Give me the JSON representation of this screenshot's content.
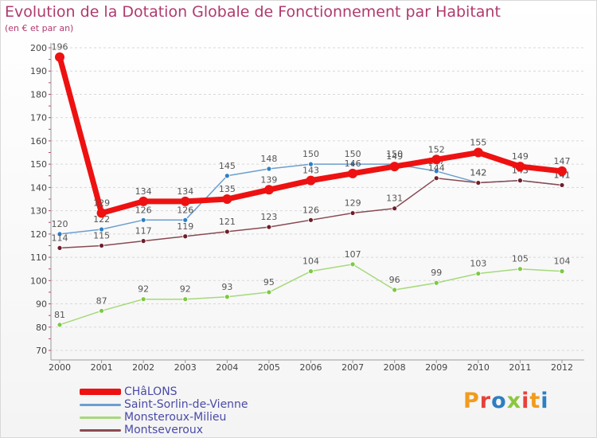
{
  "header": {
    "title": "Evolution de la Dotation Globale de Fonctionnement par Habitant",
    "subtitle": "(en € et par an)"
  },
  "brand": {
    "text": "Proxiti",
    "colors": [
      "#f29b1d",
      "#e6413a",
      "#2d7fc1",
      "#8cc63f",
      "#e6413a",
      "#f29b1d",
      "#2d7fc1"
    ]
  },
  "chart_data": {
    "type": "line",
    "title": "Evolution de la Dotation Globale de Fonctionnement par Habitant",
    "subtitle": "(en € et par an)",
    "xlabel": "",
    "ylabel": "",
    "x": [
      "2000",
      "2001",
      "2002",
      "2003",
      "2004",
      "2005",
      "2006",
      "2007",
      "2008",
      "2009",
      "2010",
      "2011",
      "2012"
    ],
    "ylim": [
      70,
      200
    ],
    "yticks": [
      70,
      80,
      90,
      100,
      110,
      120,
      130,
      140,
      150,
      160,
      170,
      180,
      190,
      200
    ],
    "grid": "horizontal dashed",
    "legend_position": "bottom-left",
    "series": [
      {
        "name": "Saint-Sorlin-de-Vienne",
        "color": "#6b9fd0",
        "marker": "#2f7fc4",
        "width": 1.5,
        "values": [
          120,
          122,
          126,
          126,
          145,
          148,
          150,
          150,
          150,
          147,
          142,
          143,
          141
        ]
      },
      {
        "name": "Monsteroux-Milieu",
        "color": "#a6d97b",
        "marker": "#7cc943",
        "width": 1.5,
        "values": [
          81,
          87,
          92,
          92,
          93,
          95,
          104,
          107,
          96,
          99,
          103,
          105,
          104
        ]
      },
      {
        "name": "Montseveroux",
        "color": "#8a4a52",
        "marker": "#6e1e28",
        "width": 1.5,
        "values": [
          114,
          115,
          117,
          119,
          121,
          123,
          126,
          129,
          131,
          144,
          142,
          143,
          141
        ]
      },
      {
        "name": "CHâLONS",
        "color": "#ee1111",
        "marker": "#ee1111",
        "width": 7,
        "values": [
          196,
          129,
          134,
          134,
          135,
          139,
          143,
          146,
          149,
          152,
          155,
          149,
          147
        ]
      }
    ],
    "legend_order": [
      "CHâLONS",
      "Saint-Sorlin-de-Vienne",
      "Monsteroux-Milieu",
      "Montseveroux"
    ]
  }
}
